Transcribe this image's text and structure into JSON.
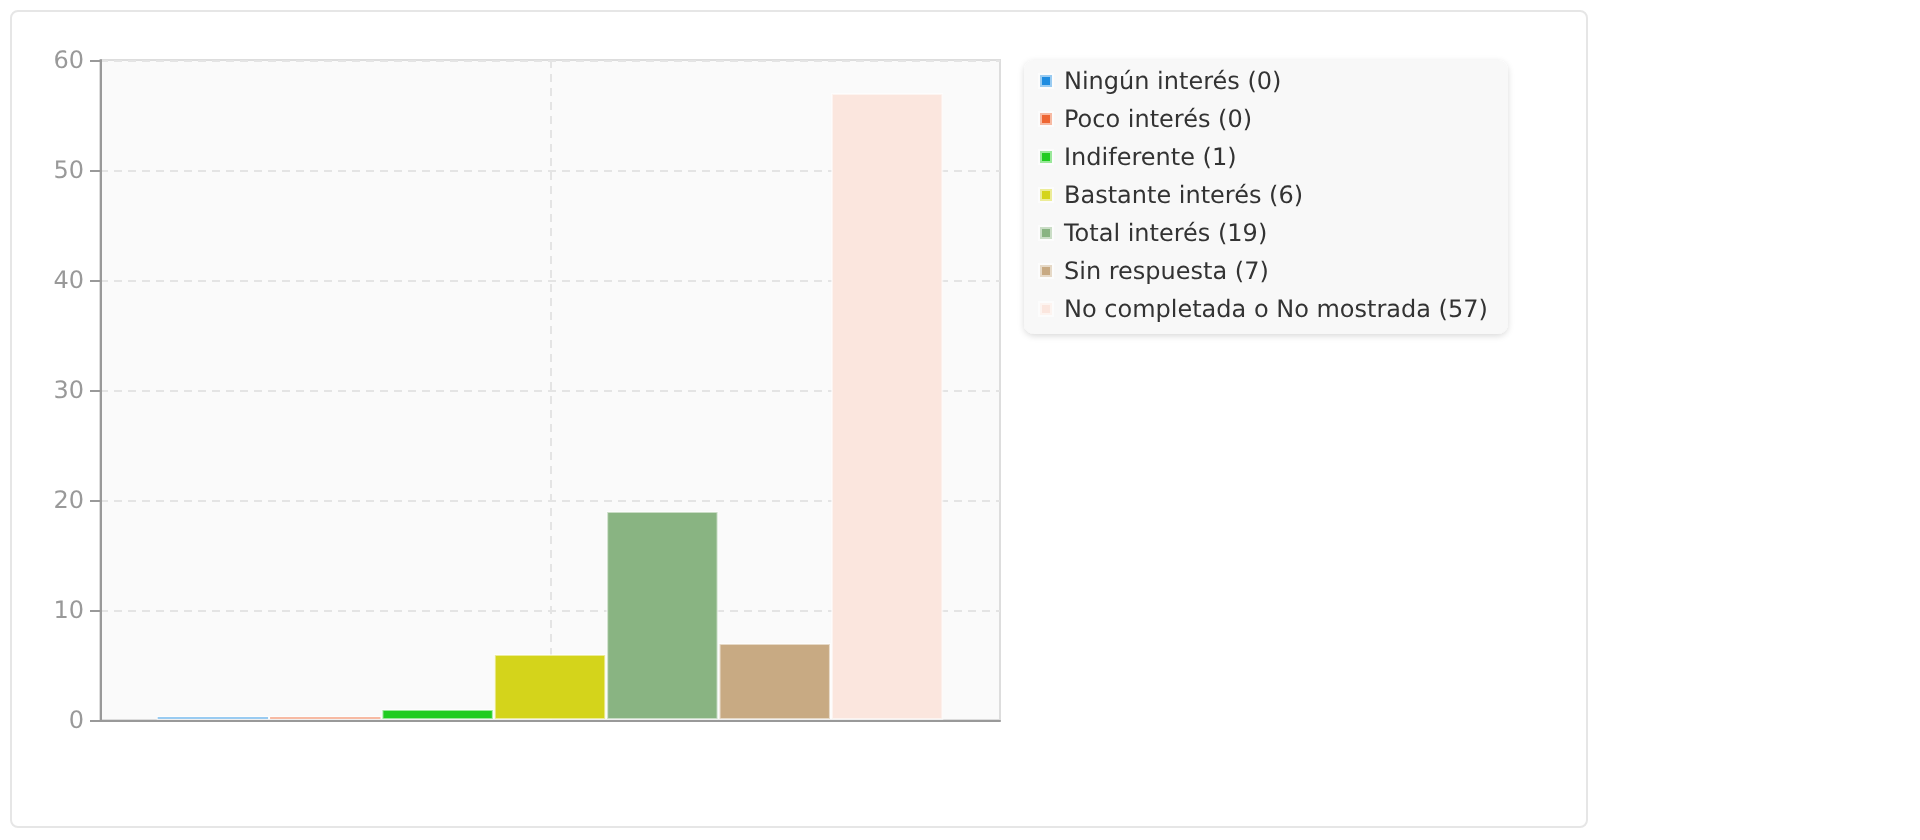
{
  "chart_data": {
    "type": "bar",
    "categories": [
      null
    ],
    "series": [
      {
        "name": "Ningún interés (0)",
        "color": "#1e8ce0",
        "values": [
          0
        ]
      },
      {
        "name": "Poco interés (0)",
        "color": "#ee6633",
        "values": [
          0
        ]
      },
      {
        "name": "Indiferente (1)",
        "color": "#21cc21",
        "values": [
          1
        ]
      },
      {
        "name": "Bastante interés (6)",
        "color": "#d4d41b",
        "values": [
          6
        ]
      },
      {
        "name": "Total interés (19)",
        "color": "#89b482",
        "values": [
          19
        ]
      },
      {
        "name": "Sin respuesta (7)",
        "color": "#c8aa83",
        "values": [
          7
        ]
      },
      {
        "name": "No completada o No mostrada (57)",
        "color": "#fbe6de",
        "values": [
          57
        ]
      }
    ],
    "ylim": [
      0,
      60
    ],
    "yticks": [
      0,
      10,
      20,
      30,
      40,
      50,
      60
    ],
    "grid": true,
    "legend": "top right"
  }
}
